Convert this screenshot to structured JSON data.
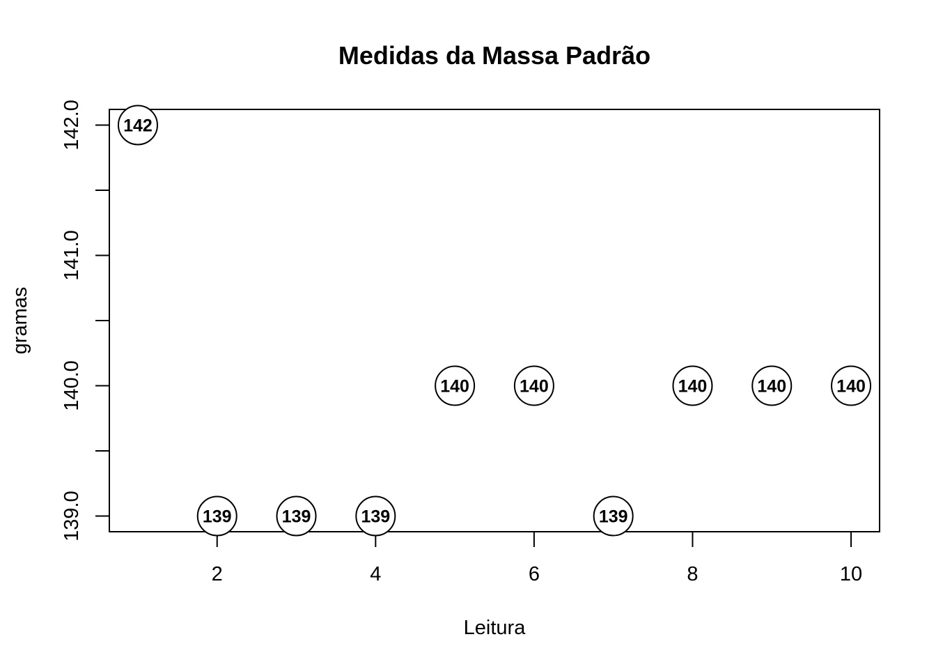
{
  "chart_data": {
    "type": "scatter",
    "title": "Medidas da Massa Padrão",
    "xlabel": "Leitura",
    "ylabel": "gramas",
    "x": [
      1,
      2,
      3,
      4,
      5,
      6,
      7,
      8,
      9,
      10
    ],
    "y": [
      142,
      139,
      139,
      139,
      140,
      140,
      139,
      140,
      140,
      140
    ],
    "point_labels": [
      "142",
      "139",
      "139",
      "139",
      "140",
      "140",
      "139",
      "140",
      "140",
      "140"
    ],
    "xlim": [
      0.64,
      10.36
    ],
    "ylim": [
      138.88,
      142.12
    ],
    "x_ticks": [
      2,
      4,
      6,
      8,
      10
    ],
    "x_tick_labels": [
      "2",
      "4",
      "6",
      "8",
      "10"
    ],
    "y_ticks": [
      139.0,
      139.5,
      140.0,
      140.5,
      141.0,
      141.5,
      142.0
    ],
    "y_tick_labels": [
      "139.0",
      "",
      "140.0",
      "",
      "141.0",
      "",
      "142.0"
    ],
    "grid": false,
    "marker": "open-circle",
    "colors": {
      "foreground": "#000000",
      "background": "#ffffff"
    }
  }
}
